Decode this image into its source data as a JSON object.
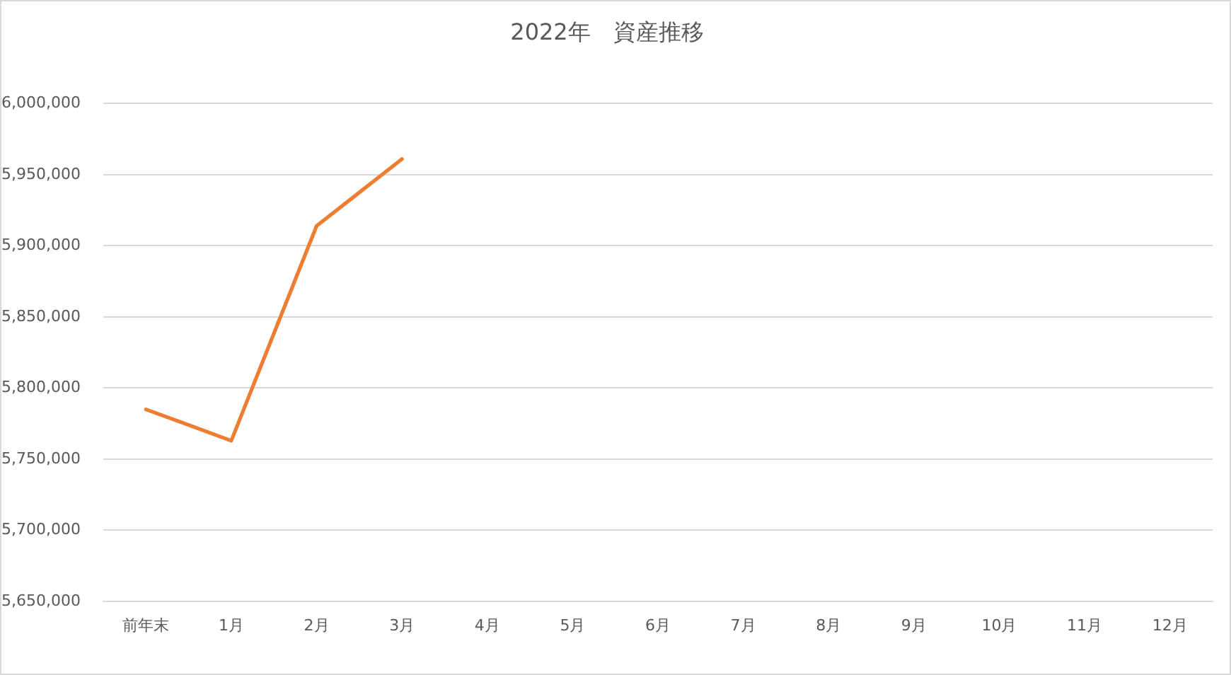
{
  "chart_data": {
    "type": "line",
    "title": "2022年　資産推移",
    "categories": [
      "前年末",
      "1月",
      "2月",
      "3月",
      "4月",
      "5月",
      "6月",
      "7月",
      "8月",
      "9月",
      "10月",
      "11月",
      "12月"
    ],
    "series": [
      {
        "color": "#ed7d31",
        "values": [
          5785000,
          5763000,
          5914000,
          5961000,
          null,
          null,
          null,
          null,
          null,
          null,
          null,
          null,
          null
        ]
      }
    ],
    "ylim": [
      5650000,
      6000000
    ],
    "yticks": [
      {
        "value": 5650000,
        "label": "5,650,000"
      },
      {
        "value": 5700000,
        "label": "5,700,000"
      },
      {
        "value": 5750000,
        "label": "5,750,000"
      },
      {
        "value": 5800000,
        "label": "5,800,000"
      },
      {
        "value": 5850000,
        "label": "5,850,000"
      },
      {
        "value": 5900000,
        "label": "5,900,000"
      },
      {
        "value": 5950000,
        "label": "5,950,000"
      },
      {
        "value": 6000000,
        "label": "6,000,000"
      }
    ],
    "grid": "y",
    "legend": false,
    "marker": "none",
    "line_style": "solid"
  }
}
